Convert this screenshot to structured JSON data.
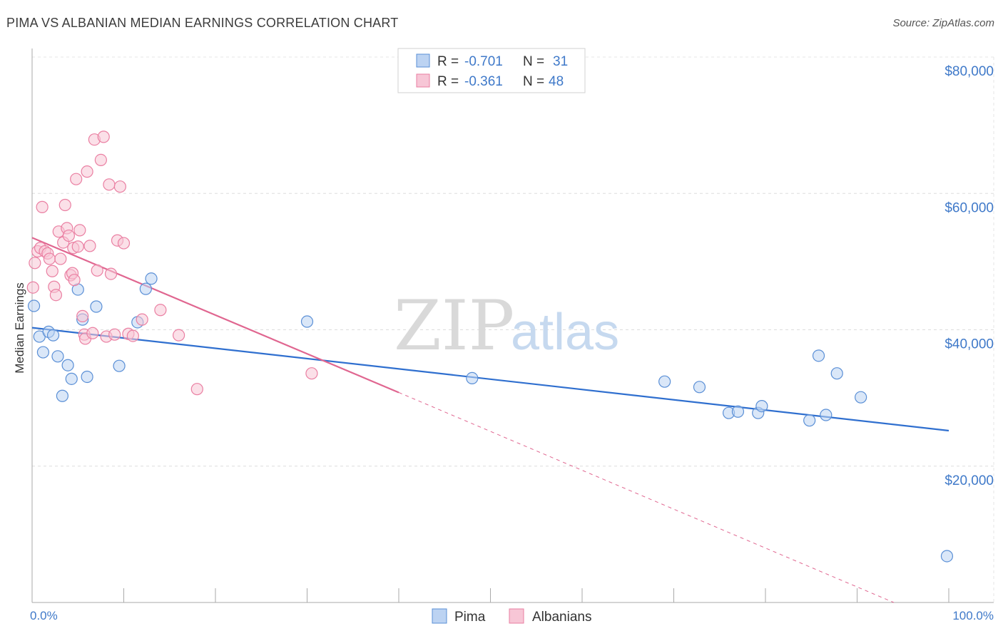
{
  "title": "PIMA VS ALBANIAN MEDIAN EARNINGS CORRELATION CHART",
  "source": "Source: ZipAtlas.com",
  "watermark": {
    "zip": "ZIP",
    "atlas": "atlas"
  },
  "colors": {
    "pima": "#5a8fd6",
    "pima_fill": "#bcd3f2",
    "pima_line": "#2f6fcf",
    "albanians": "#ea7fa2",
    "albanians_fill": "#f7c6d6",
    "albanians_line": "#e06690",
    "axis_text": "#3f79c9"
  },
  "chart_data": {
    "type": "scatter",
    "title": "PIMA VS ALBANIAN MEDIAN EARNINGS CORRELATION CHART",
    "xlabel": "",
    "ylabel": "Median Earnings",
    "xlim": [
      0,
      100
    ],
    "ylim": [
      0,
      80000
    ],
    "x_tick_labels": [
      "0.0%",
      "100.0%"
    ],
    "y_ticks": [
      20000,
      40000,
      60000,
      80000
    ],
    "y_tick_labels": [
      "$20,000",
      "$40,000",
      "$60,000",
      "$80,000"
    ],
    "grid": true,
    "legend_position": "top-center",
    "legend": [
      {
        "name": "Pima",
        "r_label": "R =",
        "r": "-0.701",
        "n_label": "N =",
        "n": "31"
      },
      {
        "name": "Albanians",
        "r_label": "R =",
        "r": "-0.361",
        "n_label": "N =",
        "n": "48"
      }
    ],
    "series": [
      {
        "name": "Pima",
        "points": [
          [
            0.2,
            43500
          ],
          [
            0.8,
            39000
          ],
          [
            1.2,
            36700
          ],
          [
            1.8,
            39700
          ],
          [
            2.3,
            39200
          ],
          [
            2.8,
            36100
          ],
          [
            3.3,
            30300
          ],
          [
            3.9,
            34800
          ],
          [
            4.3,
            32800
          ],
          [
            5.0,
            45900
          ],
          [
            5.5,
            41500
          ],
          [
            6.0,
            33100
          ],
          [
            7.0,
            43400
          ],
          [
            9.5,
            34700
          ],
          [
            11.5,
            41100
          ],
          [
            12.4,
            46000
          ],
          [
            13.0,
            47500
          ],
          [
            30.0,
            41200
          ],
          [
            48.0,
            32900
          ],
          [
            69.0,
            32400
          ],
          [
            72.8,
            31600
          ],
          [
            76.0,
            27800
          ],
          [
            77.0,
            28000
          ],
          [
            79.2,
            27800
          ],
          [
            79.6,
            28800
          ],
          [
            84.8,
            26700
          ],
          [
            85.8,
            36200
          ],
          [
            86.6,
            27500
          ],
          [
            87.8,
            33600
          ],
          [
            90.4,
            30100
          ],
          [
            99.8,
            6800
          ]
        ],
        "trend": {
          "x": [
            0,
            100
          ],
          "y": [
            40300,
            25200
          ]
        }
      },
      {
        "name": "Albanians",
        "points": [
          [
            0.1,
            46200
          ],
          [
            0.3,
            49800
          ],
          [
            0.6,
            51500
          ],
          [
            0.9,
            52000
          ],
          [
            1.1,
            58000
          ],
          [
            1.4,
            51500
          ],
          [
            1.7,
            51200
          ],
          [
            1.9,
            50400
          ],
          [
            2.2,
            48600
          ],
          [
            2.4,
            46300
          ],
          [
            2.6,
            45100
          ],
          [
            2.9,
            54400
          ],
          [
            3.1,
            50400
          ],
          [
            3.4,
            52800
          ],
          [
            3.6,
            58300
          ],
          [
            3.8,
            54900
          ],
          [
            4.0,
            53800
          ],
          [
            4.2,
            48000
          ],
          [
            4.4,
            48300
          ],
          [
            4.5,
            52000
          ],
          [
            4.6,
            47300
          ],
          [
            4.8,
            62100
          ],
          [
            5.0,
            52200
          ],
          [
            5.2,
            54600
          ],
          [
            5.5,
            42000
          ],
          [
            5.7,
            39300
          ],
          [
            5.8,
            38700
          ],
          [
            6.0,
            63200
          ],
          [
            6.3,
            52300
          ],
          [
            6.6,
            39500
          ],
          [
            6.8,
            67900
          ],
          [
            7.1,
            48700
          ],
          [
            7.5,
            64900
          ],
          [
            7.8,
            68300
          ],
          [
            8.1,
            39000
          ],
          [
            8.4,
            61300
          ],
          [
            8.6,
            48200
          ],
          [
            9.0,
            39300
          ],
          [
            9.3,
            53100
          ],
          [
            9.6,
            61000
          ],
          [
            10.0,
            52700
          ],
          [
            10.5,
            39400
          ],
          [
            11.0,
            39100
          ],
          [
            12.0,
            41500
          ],
          [
            14.0,
            42900
          ],
          [
            16.0,
            39200
          ],
          [
            18.0,
            31300
          ],
          [
            30.5,
            33600
          ]
        ],
        "trend": {
          "x": [
            0,
            40
          ],
          "y": [
            53500,
            30800
          ]
        },
        "trend_dashed": {
          "x": [
            40,
            94
          ],
          "y": [
            30800,
            0
          ]
        }
      }
    ]
  }
}
